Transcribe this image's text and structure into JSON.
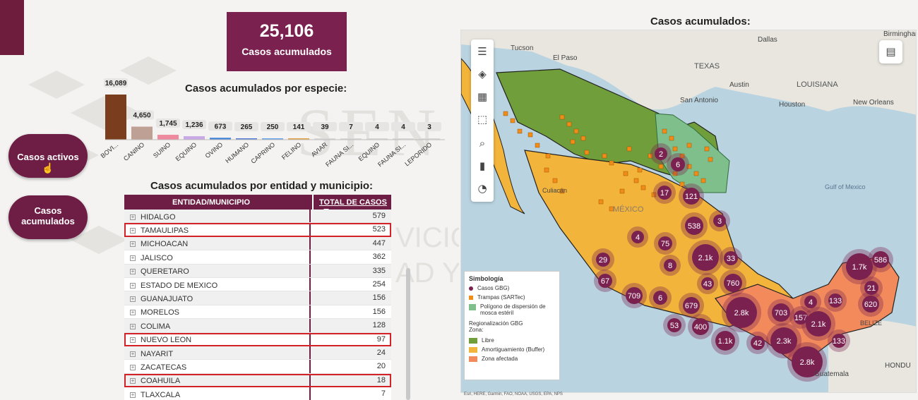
{
  "kpi": {
    "value": "25,106",
    "label": "Casos acumulados"
  },
  "species": {
    "title": "Casos acumulados por especie:",
    "chart_data": {
      "type": "bar",
      "categories": [
        "BOVI...",
        "CANINO",
        "SUINO",
        "EQUINO",
        "OVINO",
        "HUMANO",
        "CAPRINO",
        "FELINO",
        "AVIAR",
        "FAUNA SI...",
        "EQUINO",
        "FAUNA SI...",
        "LEPORIDO"
      ],
      "values": [
        16089,
        4650,
        1745,
        1236,
        673,
        265,
        250,
        141,
        39,
        7,
        4,
        4,
        3
      ],
      "labels": [
        "16,089",
        "4,650",
        "1,745",
        "1,236",
        "673",
        "265",
        "250",
        "141",
        "39",
        "7",
        "4",
        "4",
        "3"
      ],
      "colors": [
        "#7a3e1f",
        "#bfa094",
        "#ef8a9e",
        "#c9a9e6",
        "#3b82d8",
        "#5a7fd6",
        "#6aa6e8",
        "#e2a34a",
        "#d8d8d8",
        "#d8d8d8",
        "#d8d8d8",
        "#d8d8d8",
        "#d8d8d8"
      ]
    }
  },
  "buttons": {
    "activos": "Casos activos",
    "acumulados_1": "Casos",
    "acumulados_2": "acumulados"
  },
  "table": {
    "title": "Casos acumulados por entidad y municipio:",
    "col_municipio": "ENTIDAD/MUNICIPIO",
    "col_total": "TOTAL DE CASOS",
    "rows": [
      {
        "name": "HIDALGO",
        "total": "579"
      },
      {
        "name": "TAMAULIPAS",
        "total": "523"
      },
      {
        "name": "MICHOACAN",
        "total": "447"
      },
      {
        "name": "JALISCO",
        "total": "362"
      },
      {
        "name": "QUERETARO",
        "total": "335"
      },
      {
        "name": "ESTADO DE MEXICO",
        "total": "254"
      },
      {
        "name": "GUANAJUATO",
        "total": "156"
      },
      {
        "name": "MORELOS",
        "total": "156"
      },
      {
        "name": "COLIMA",
        "total": "128"
      },
      {
        "name": "NUEVO LEON",
        "total": "97"
      },
      {
        "name": "NAYARIT",
        "total": "24"
      },
      {
        "name": "ZACATECAS",
        "total": "20"
      },
      {
        "name": "COAHUILA",
        "total": "18"
      },
      {
        "name": "TLAXCALA",
        "total": "7"
      }
    ],
    "highlighted": [
      "TAMAULIPAS",
      "NUEVO LEON",
      "COAHUILA"
    ]
  },
  "map": {
    "title": "Casos acumulados:",
    "place_labels": [
      "Tucson",
      "El Paso",
      "Dallas",
      "TEXAS",
      "Austin",
      "San Antonio",
      "Houston",
      "LOUISIANA",
      "New Orleans",
      "Gulf of Mexico",
      "Culiacán",
      "MÉXICO",
      "Guatemala",
      "BELIZE",
      "HONDU",
      "Birmingham"
    ],
    "clusters": [
      "2",
      "6",
      "17",
      "121",
      "538",
      "3",
      "2.1k",
      "33",
      "4",
      "75",
      "8",
      "29",
      "67",
      "709",
      "6",
      "679",
      "43",
      "760",
      "53",
      "400",
      "2.8k",
      "703",
      "157",
      "4",
      "133",
      "2.1k",
      "2.3k",
      "1.1k",
      "42",
      "133",
      "2.8k",
      "1.7k",
      "586",
      "21",
      "620"
    ],
    "legend": {
      "title": "Simbología",
      "items": [
        "Casos GBG)",
        "Trampas (SARTec)",
        "Polígono de dispersión de mosca estéril"
      ],
      "sub_title_1": "Regionalización GBG",
      "sub_title_2": "Zona:",
      "zones": [
        "Libre",
        "Amortiguamiento (Buffer)",
        "Zona afectada"
      ],
      "colors": {
        "casos": "#7b2150",
        "trampas": "#f28c18",
        "poligono": "#7fbf8c",
        "libre": "#6f9e3a",
        "buffer": "#f2b43a",
        "afectada": "#f28a5c"
      }
    },
    "attribution": "Esri, HERE, Garmin, FAO, NOAA, USGS, EPA, NPS"
  }
}
